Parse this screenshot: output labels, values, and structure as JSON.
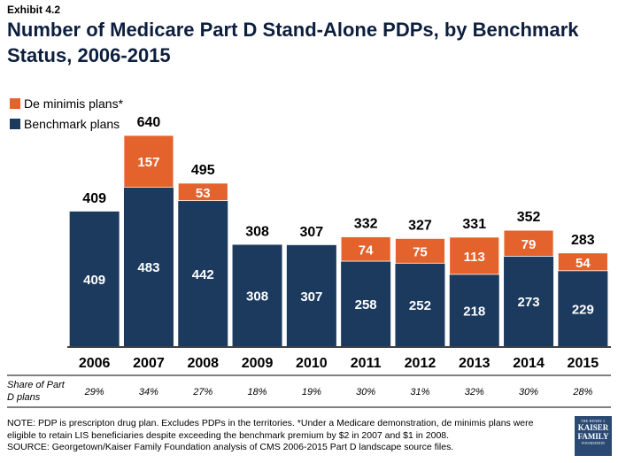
{
  "header": {
    "exhibit": "Exhibit 4.2",
    "title": "Number of Medicare Part D Stand-Alone PDPs, by Benchmark Status, 2006-2015"
  },
  "chart_data": {
    "type": "bar",
    "stacked": true,
    "categories": [
      "2006",
      "2007",
      "2008",
      "2009",
      "2010",
      "2011",
      "2012",
      "2013",
      "2014",
      "2015"
    ],
    "series": [
      {
        "name": "Benchmark plans",
        "color": "#1b3a5e",
        "values": [
          409,
          483,
          442,
          308,
          307,
          258,
          252,
          218,
          273,
          229
        ]
      },
      {
        "name": "De minimis plans*",
        "color": "#e4622b",
        "values": [
          0,
          157,
          53,
          0,
          0,
          74,
          75,
          113,
          79,
          54
        ]
      }
    ],
    "totals": [
      409,
      640,
      495,
      308,
      307,
      332,
      327,
      331,
      352,
      283
    ],
    "legend_position": "top-left",
    "ylim": [
      0,
      640
    ],
    "share_row": {
      "label": "Share of Part D plans",
      "values": [
        "29%",
        "34%",
        "27%",
        "18%",
        "19%",
        "30%",
        "31%",
        "32%",
        "30%",
        "28%"
      ]
    }
  },
  "footer": {
    "note": "NOTE: PDP is prescripton drug plan. Excludes PDPs in the territories. *Under a Medicare demonstration, de minimis plans were eligible to retain LIS beneficiaries despite exceeding the benchmark premium by $2 in 2007 and $1 in 2008.",
    "source": "SOURCE: Georgetown/Kaiser Family Foundation analysis of CMS 2006-2015 Part D landscape source files.",
    "logo": {
      "line1": "THE HENRY J.",
      "line2": "KAISER",
      "line3": "FAMILY",
      "line4": "FOUNDATION"
    }
  }
}
